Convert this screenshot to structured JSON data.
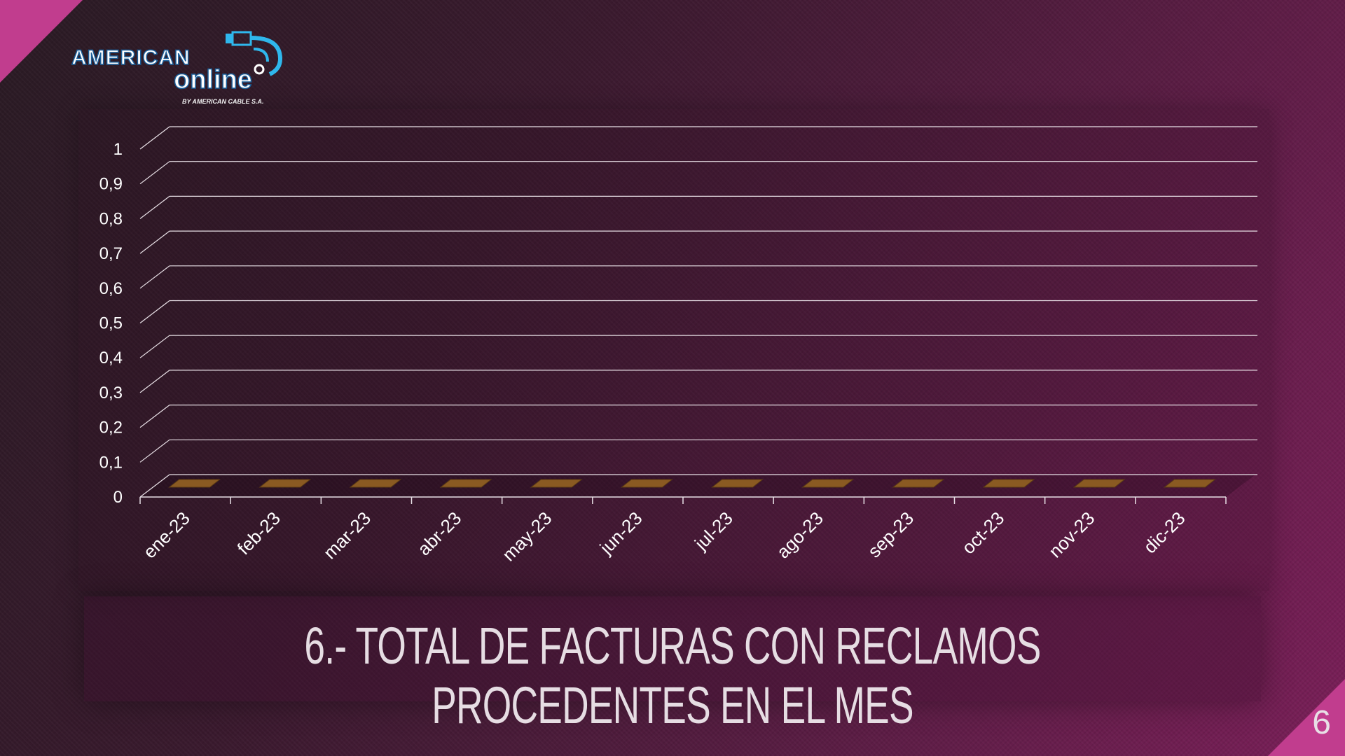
{
  "slide": {
    "title": "6.- TOTAL DE FACTURAS CON RECLAMOS PROCEDENTES EN EL MES",
    "page_number": "6"
  },
  "logo": {
    "name_top": "AMERICAN",
    "name_bottom": "online",
    "tagline": "BY AMERICAN CABLE S.A."
  },
  "colors": {
    "background_dark": "#2a1b24",
    "background_magenta": "#7a1f58",
    "accent_pink": "#c13d8e",
    "bar_fill": "#8a5a22",
    "gridline": "#e8e0e6",
    "logo_blue": "#2fb7ec"
  },
  "chart_data": {
    "type": "bar",
    "title": "",
    "xlabel": "",
    "ylabel": "",
    "categories": [
      "ene-23",
      "feb-23",
      "mar-23",
      "abr-23",
      "may-23",
      "jun-23",
      "jul-23",
      "ago-23",
      "sep-23",
      "oct-23",
      "nov-23",
      "dic-23"
    ],
    "values": [
      0,
      0,
      0,
      0,
      0,
      0,
      0,
      0,
      0,
      0,
      0,
      0
    ],
    "ylim": [
      0,
      1
    ],
    "yticks": [
      "0",
      "0,1",
      "0,2",
      "0,3",
      "0,4",
      "0,5",
      "0,6",
      "0,7",
      "0,8",
      "0,9",
      "1"
    ],
    "grid": true,
    "style": "3d"
  }
}
